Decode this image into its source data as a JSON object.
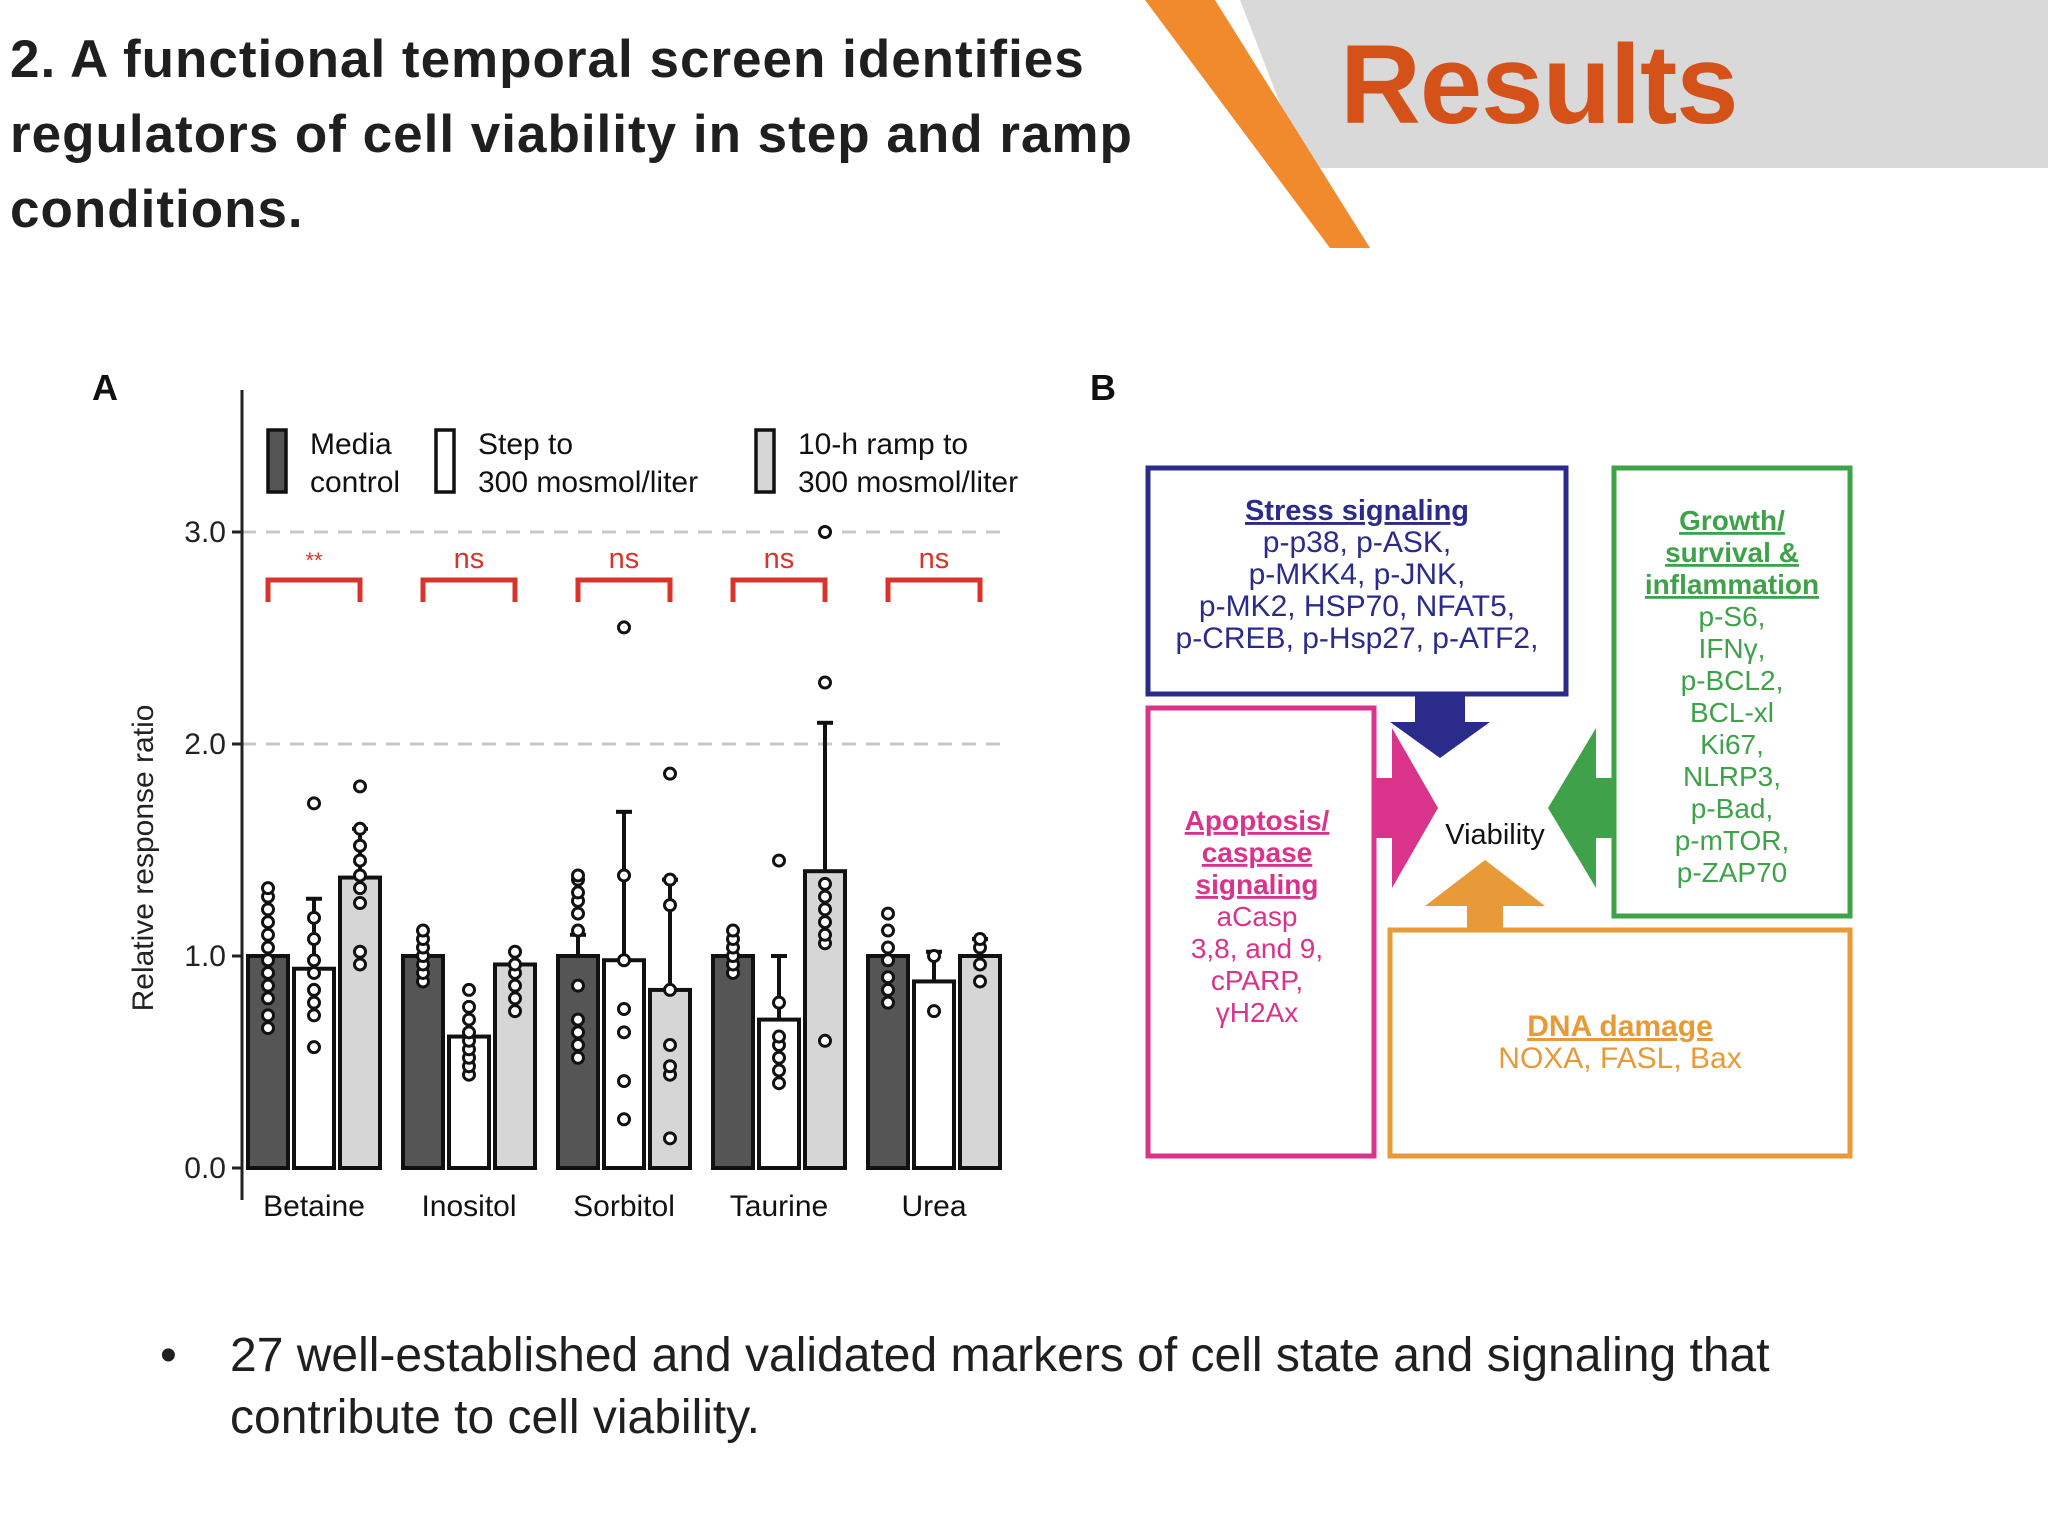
{
  "slide": {
    "title": "2. A functional temporal screen identifies regulators of cell viability in step and ramp conditions.",
    "section_label": "Results",
    "bullet_marker": "•",
    "bullet_text": "27 well-established and validated markers of cell state and signaling that contribute to cell viability.",
    "colors": {
      "accent_orange": "#f08a2c",
      "section_label": "#d4521a",
      "banner_gray": "#d9d9d9"
    }
  },
  "panel_b": {
    "label": "B",
    "center_label": "Viability",
    "boxes": [
      {
        "title": "Stress signaling",
        "lines": [
          "p-p38, p-ASK,",
          "p-MKK4, p-JNK,",
          "p-MK2, HSP70, NFAT5,",
          "p-CREB, p-Hsp27, p-ATF2,"
        ],
        "color": "#2b2b8c"
      },
      {
        "title_lines": [
          "Growth/",
          "survival &",
          "inflammation"
        ],
        "lines": [
          "p-S6,",
          "IFNγ,",
          "p-BCL2,",
          "BCL-xl",
          "Ki67,",
          "NLRP3,",
          "p-Bad,",
          "p-mTOR,",
          "p-ZAP70"
        ],
        "color": "#3fa14a"
      },
      {
        "title_lines": [
          "Apoptosis/",
          "caspase",
          "signaling"
        ],
        "lines": [
          "aCasp",
          "3,8, and 9,",
          "cPARP,",
          "γH2Ax"
        ],
        "color": "#d9338c"
      },
      {
        "title": "DNA damage",
        "lines": [
          "NOXA, FASL, Bax"
        ],
        "color": "#e89a38"
      }
    ]
  },
  "chart_data": {
    "type": "bar",
    "panel_label": "A",
    "title": "",
    "xlabel": "",
    "ylabel": "Relative response ratio",
    "ylim": [
      0,
      3.6
    ],
    "yticks": [
      0.0,
      1.0,
      2.0,
      3.0
    ],
    "ytick_labels": [
      "0.0",
      "1.0",
      "2.0",
      "3.0"
    ],
    "grid": "dashed at 2.0 and 3.0",
    "legend_position": "top",
    "categories": [
      "Betaine",
      "Inositol",
      "Sorbitol",
      "Taurine",
      "Urea"
    ],
    "series": [
      {
        "name": "Media control",
        "legend_lines": [
          "Media",
          "control"
        ],
        "fill": "#555555",
        "values": [
          1.0,
          1.0,
          1.0,
          1.0,
          1.0
        ],
        "error_high": [
          null,
          null,
          1.1,
          null,
          null
        ],
        "points": [
          [
            0.66,
            0.72,
            0.8,
            0.86,
            0.92,
            0.98,
            1.04,
            1.1,
            1.16,
            1.22,
            1.28,
            1.32
          ],
          [
            0.88,
            0.92,
            0.96,
            1.0,
            1.04,
            1.08,
            1.12
          ],
          [
            0.52,
            0.58,
            0.64,
            0.7,
            0.86,
            1.12,
            1.2,
            1.26,
            1.3,
            1.36,
            1.38
          ],
          [
            0.92,
            0.96,
            1.0,
            1.04,
            1.08,
            1.12
          ],
          [
            0.78,
            0.84,
            0.9,
            0.98,
            1.04,
            1.12,
            1.2
          ]
        ]
      },
      {
        "name": "Step to 300 mosmol/liter",
        "legend_lines": [
          "Step to",
          "300 mosmol/liter"
        ],
        "fill": "#ffffff",
        "values": [
          0.94,
          0.62,
          0.98,
          0.7,
          0.88
        ],
        "error_high": [
          1.27,
          null,
          1.68,
          1.0,
          1.02
        ],
        "points": [
          [
            0.57,
            0.72,
            0.78,
            0.84,
            0.92,
            0.98,
            1.08,
            1.18,
            1.72
          ],
          [
            0.44,
            0.48,
            0.52,
            0.56,
            0.6,
            0.64,
            0.7,
            0.76,
            0.84
          ],
          [
            0.23,
            0.41,
            0.64,
            0.75,
            0.98,
            1.38,
            2.55
          ],
          [
            0.4,
            0.46,
            0.52,
            0.58,
            0.62,
            0.78,
            1.45
          ],
          [
            0.74,
            1.0
          ]
        ]
      },
      {
        "name": "10-h ramp to 300 mosmol/liter",
        "legend_lines": [
          "10-h ramp to",
          "300 mosmol/liter"
        ],
        "fill": "#d6d6d6",
        "values": [
          1.37,
          0.96,
          0.84,
          1.4,
          1.0
        ],
        "error_high": [
          1.6,
          null,
          1.36,
          2.1,
          1.08
        ],
        "points": [
          [
            0.96,
            1.02,
            1.25,
            1.32,
            1.38,
            1.45,
            1.52,
            1.6,
            1.8
          ],
          [
            0.74,
            0.8,
            0.86,
            0.92,
            0.96,
            1.02
          ],
          [
            0.14,
            0.44,
            0.48,
            0.58,
            0.84,
            1.24,
            1.36,
            1.86
          ],
          [
            0.6,
            1.06,
            1.1,
            1.16,
            1.22,
            1.28,
            1.34,
            2.29,
            3.0
          ],
          [
            0.88,
            0.96,
            1.04,
            1.08
          ]
        ]
      }
    ],
    "significance": [
      "**",
      "ns",
      "ns",
      "ns",
      "ns"
    ],
    "significance_color": "#d9342b"
  }
}
